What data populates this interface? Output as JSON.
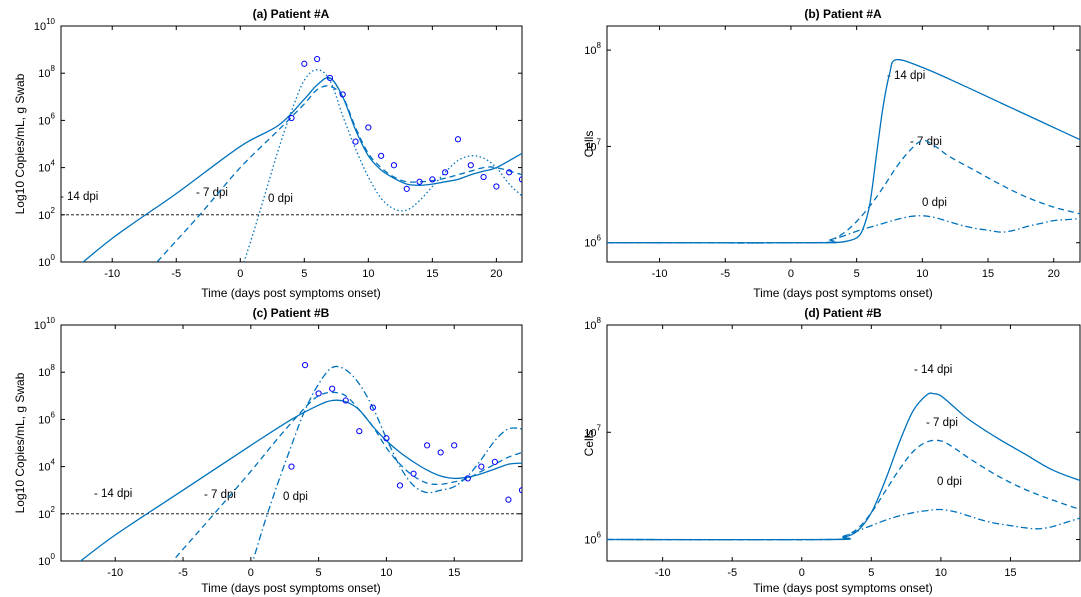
{
  "colors": {
    "line": "#0072BD",
    "marker": "#0000FF",
    "threshold": "#000000",
    "axis": "#000000"
  },
  "chart_data": [
    {
      "type": "line",
      "title": "(a) Patient #A",
      "xlabel": "Time (days post symptoms onset)",
      "ylabel": "Log10 Copies/mL, g Swab",
      "yscale": "log",
      "xlim": [
        -14,
        22
      ],
      "ylim_exp": [
        0,
        10
      ],
      "xticks": [
        -10,
        -5,
        0,
        5,
        10,
        15,
        20
      ],
      "yticks_exp": [
        0,
        2,
        4,
        6,
        8,
        10
      ],
      "threshold": 2,
      "series": [
        {
          "style": "solid",
          "x": [
            -14,
            -10,
            -5,
            0,
            3,
            5,
            6,
            7,
            8,
            9,
            10,
            11,
            12,
            13,
            14,
            15,
            16,
            17,
            18,
            19,
            20,
            22
          ],
          "logy": [
            -0.8,
            1.0,
            2.9,
            4.9,
            5.8,
            6.9,
            7.5,
            7.8,
            7.0,
            5.6,
            4.5,
            3.9,
            3.55,
            3.3,
            3.25,
            3.3,
            3.4,
            3.5,
            3.7,
            3.85,
            4.0,
            4.6
          ]
        },
        {
          "style": "dashed",
          "x": [
            -7,
            -5,
            -3,
            0,
            3,
            5,
            6,
            7,
            8,
            9,
            10,
            11,
            12,
            13,
            14,
            15,
            16,
            17,
            18,
            19,
            20,
            22
          ],
          "logy": [
            -0.3,
            0.9,
            2.1,
            4.0,
            5.6,
            6.7,
            7.3,
            7.45,
            7.0,
            5.7,
            4.6,
            4.0,
            3.6,
            3.4,
            3.4,
            3.45,
            3.55,
            3.7,
            3.85,
            4.0,
            4.0,
            3.7
          ]
        },
        {
          "style": "dotted",
          "x": [
            0,
            1,
            2,
            3,
            4,
            5,
            6,
            7,
            8,
            9,
            10,
            11,
            12,
            13,
            14,
            15,
            16,
            17,
            18,
            19,
            20,
            21,
            22
          ],
          "logy": [
            -0.5,
            1.2,
            3.0,
            4.8,
            6.4,
            7.7,
            8.15,
            7.7,
            6.2,
            4.8,
            3.6,
            2.7,
            2.25,
            2.2,
            2.6,
            3.2,
            3.8,
            4.3,
            4.5,
            4.4,
            4.0,
            3.3,
            2.8
          ]
        }
      ],
      "observations": {
        "x": [
          4,
          5,
          6,
          7,
          8,
          9,
          10,
          11,
          12,
          13,
          14,
          15,
          16,
          17,
          18,
          19,
          20,
          21,
          22
        ],
        "logy": [
          6.1,
          8.4,
          8.6,
          7.8,
          7.1,
          5.1,
          5.7,
          4.5,
          4.1,
          3.1,
          3.4,
          3.5,
          3.8,
          5.2,
          4.1,
          3.6,
          3.2,
          3.8,
          3.5
        ]
      },
      "annotations": [
        "- 14 dpi",
        "- 7 dpi",
        "0 dpi"
      ]
    },
    {
      "type": "line",
      "title": "(b) Patient #A",
      "xlabel": "Time (days post symptoms onset)",
      "ylabel": "Cells",
      "yscale": "log",
      "xlim": [
        -14,
        22
      ],
      "ylim_exp": [
        5.8,
        8.25
      ],
      "xticks": [
        -10,
        -5,
        0,
        5,
        10,
        15,
        20
      ],
      "yticks_exp": [
        6,
        7,
        8
      ],
      "series": [
        {
          "style": "solid",
          "x": [
            -14,
            2,
            3,
            4,
            5,
            5.5,
            6,
            6.5,
            7,
            7.5,
            8,
            10,
            13,
            16,
            19,
            22
          ],
          "logy": [
            6.0,
            6.0,
            6.002,
            6.01,
            6.05,
            6.15,
            6.4,
            6.9,
            7.4,
            7.75,
            7.9,
            7.82,
            7.64,
            7.45,
            7.26,
            7.07
          ]
        },
        {
          "style": "dashed",
          "x": [
            -14,
            1.5,
            3,
            4,
            5,
            6,
            7,
            8,
            9,
            10,
            11,
            12,
            14,
            16,
            18,
            20,
            22
          ],
          "logy": [
            6.0,
            6.0,
            6.03,
            6.1,
            6.22,
            6.38,
            6.57,
            6.78,
            6.95,
            7.06,
            7.0,
            6.9,
            6.75,
            6.6,
            6.47,
            6.37,
            6.3
          ]
        },
        {
          "style": "dashdot",
          "x": [
            -14,
            2,
            3,
            4,
            5,
            6,
            7,
            8,
            9,
            10,
            11,
            12,
            13,
            14,
            15,
            16,
            17,
            18,
            19,
            20,
            21,
            22
          ],
          "logy": [
            6.0,
            6.0,
            6.03,
            6.07,
            6.12,
            6.16,
            6.2,
            6.24,
            6.27,
            6.28,
            6.26,
            6.22,
            6.18,
            6.15,
            6.13,
            6.11,
            6.13,
            6.17,
            6.2,
            6.23,
            6.24,
            6.25
          ]
        }
      ],
      "annotations": [
        "- 14 dpi",
        "- 7 dpi",
        "0 dpi"
      ]
    },
    {
      "type": "line",
      "title": "(c) Patient #B",
      "xlabel": "Time (days post symptoms onset)",
      "ylabel": "Log10 Copies/mL, g Swab",
      "yscale": "log",
      "xlim": [
        -14,
        20
      ],
      "ylim_exp": [
        0,
        10
      ],
      "xticks": [
        -10,
        -5,
        0,
        5,
        10,
        15
      ],
      "yticks_exp": [
        0,
        2,
        4,
        6,
        8,
        10
      ],
      "threshold": 2,
      "series": [
        {
          "style": "solid",
          "x": [
            -13,
            -10,
            -5,
            0,
            3,
            5,
            6,
            7,
            8,
            9,
            10,
            11,
            12,
            13,
            14,
            15,
            16,
            17,
            18,
            19,
            20
          ],
          "logy": [
            -0.2,
            1.1,
            3.0,
            4.9,
            6.0,
            6.6,
            6.8,
            6.75,
            6.4,
            5.7,
            5.1,
            4.6,
            4.2,
            3.85,
            3.6,
            3.5,
            3.55,
            3.7,
            3.9,
            4.1,
            4.15
          ]
        },
        {
          "style": "dashed",
          "x": [
            -6.5,
            -5,
            -3,
            0,
            2,
            4,
            5,
            6,
            7,
            8,
            9,
            10,
            11,
            12,
            13,
            14,
            15,
            16,
            17,
            18,
            19,
            20
          ],
          "logy": [
            -0.5,
            0.5,
            1.8,
            3.8,
            5.2,
            6.5,
            7.0,
            7.15,
            7.0,
            6.4,
            5.7,
            4.8,
            4.1,
            3.6,
            3.3,
            3.25,
            3.35,
            3.5,
            3.8,
            4.1,
            4.4,
            4.6
          ]
        },
        {
          "style": "dashdot",
          "x": [
            0,
            1,
            2,
            3,
            4,
            5,
            6,
            7,
            8,
            9,
            10,
            11,
            12,
            13,
            14,
            15,
            16,
            17,
            18,
            19,
            20
          ],
          "logy": [
            -0.3,
            1.6,
            3.3,
            4.9,
            6.4,
            7.5,
            8.2,
            8.1,
            7.5,
            6.5,
            5.2,
            4.0,
            3.2,
            2.9,
            3.0,
            3.15,
            3.6,
            4.3,
            5.1,
            5.6,
            5.6
          ]
        }
      ],
      "observations": {
        "x": [
          3,
          4,
          5,
          6,
          7,
          8,
          9,
          10,
          11,
          12,
          13,
          14,
          15,
          16,
          17,
          18,
          19,
          20
        ],
        "logy": [
          4.0,
          8.3,
          7.1,
          7.3,
          6.8,
          5.5,
          6.5,
          5.2,
          3.2,
          3.7,
          4.9,
          4.6,
          4.9,
          3.5,
          4.0,
          4.2,
          2.6,
          3.0
        ]
      },
      "annotations": [
        "- 14 dpi",
        "- 7 dpi",
        "0 dpi"
      ]
    },
    {
      "type": "line",
      "title": "(d) Patient #B",
      "xlabel": "Time (days post symptoms onset)",
      "ylabel": "Cells",
      "yscale": "log",
      "xlim": [
        -14,
        20
      ],
      "ylim_exp": [
        5.8,
        8.0
      ],
      "xticks": [
        -10,
        -5,
        0,
        5,
        10,
        15
      ],
      "yticks_exp": [
        6,
        7,
        8
      ],
      "series": [
        {
          "style": "solid",
          "x": [
            -14,
            2,
            3,
            4,
            5,
            6,
            7,
            8,
            9,
            9.5,
            10,
            11,
            12,
            14,
            16,
            18,
            20
          ],
          "logy": [
            6.0,
            6.0,
            6.02,
            6.08,
            6.25,
            6.55,
            6.9,
            7.2,
            7.35,
            7.36,
            7.34,
            7.23,
            7.12,
            6.95,
            6.8,
            6.65,
            6.55
          ]
        },
        {
          "style": "dashed",
          "x": [
            -14,
            2,
            3,
            4,
            5,
            6,
            7,
            8,
            9,
            10,
            11,
            12,
            14,
            16,
            18,
            20
          ],
          "logy": [
            6.0,
            6.0,
            6.03,
            6.1,
            6.25,
            6.45,
            6.65,
            6.82,
            6.91,
            6.92,
            6.85,
            6.76,
            6.6,
            6.47,
            6.37,
            6.28
          ]
        },
        {
          "style": "dashdot",
          "x": [
            -14,
            2,
            3,
            4,
            5,
            6,
            7,
            8,
            9,
            10,
            11,
            12,
            13,
            14,
            15,
            16,
            17,
            18,
            19,
            20
          ],
          "logy": [
            6.0,
            6.0,
            6.03,
            6.08,
            6.13,
            6.18,
            6.22,
            6.25,
            6.27,
            6.28,
            6.26,
            6.22,
            6.18,
            6.15,
            6.13,
            6.11,
            6.1,
            6.12,
            6.16,
            6.2
          ]
        }
      ],
      "annotations": [
        "- 14 dpi",
        "- 7 dpi",
        "0 dpi"
      ]
    }
  ]
}
